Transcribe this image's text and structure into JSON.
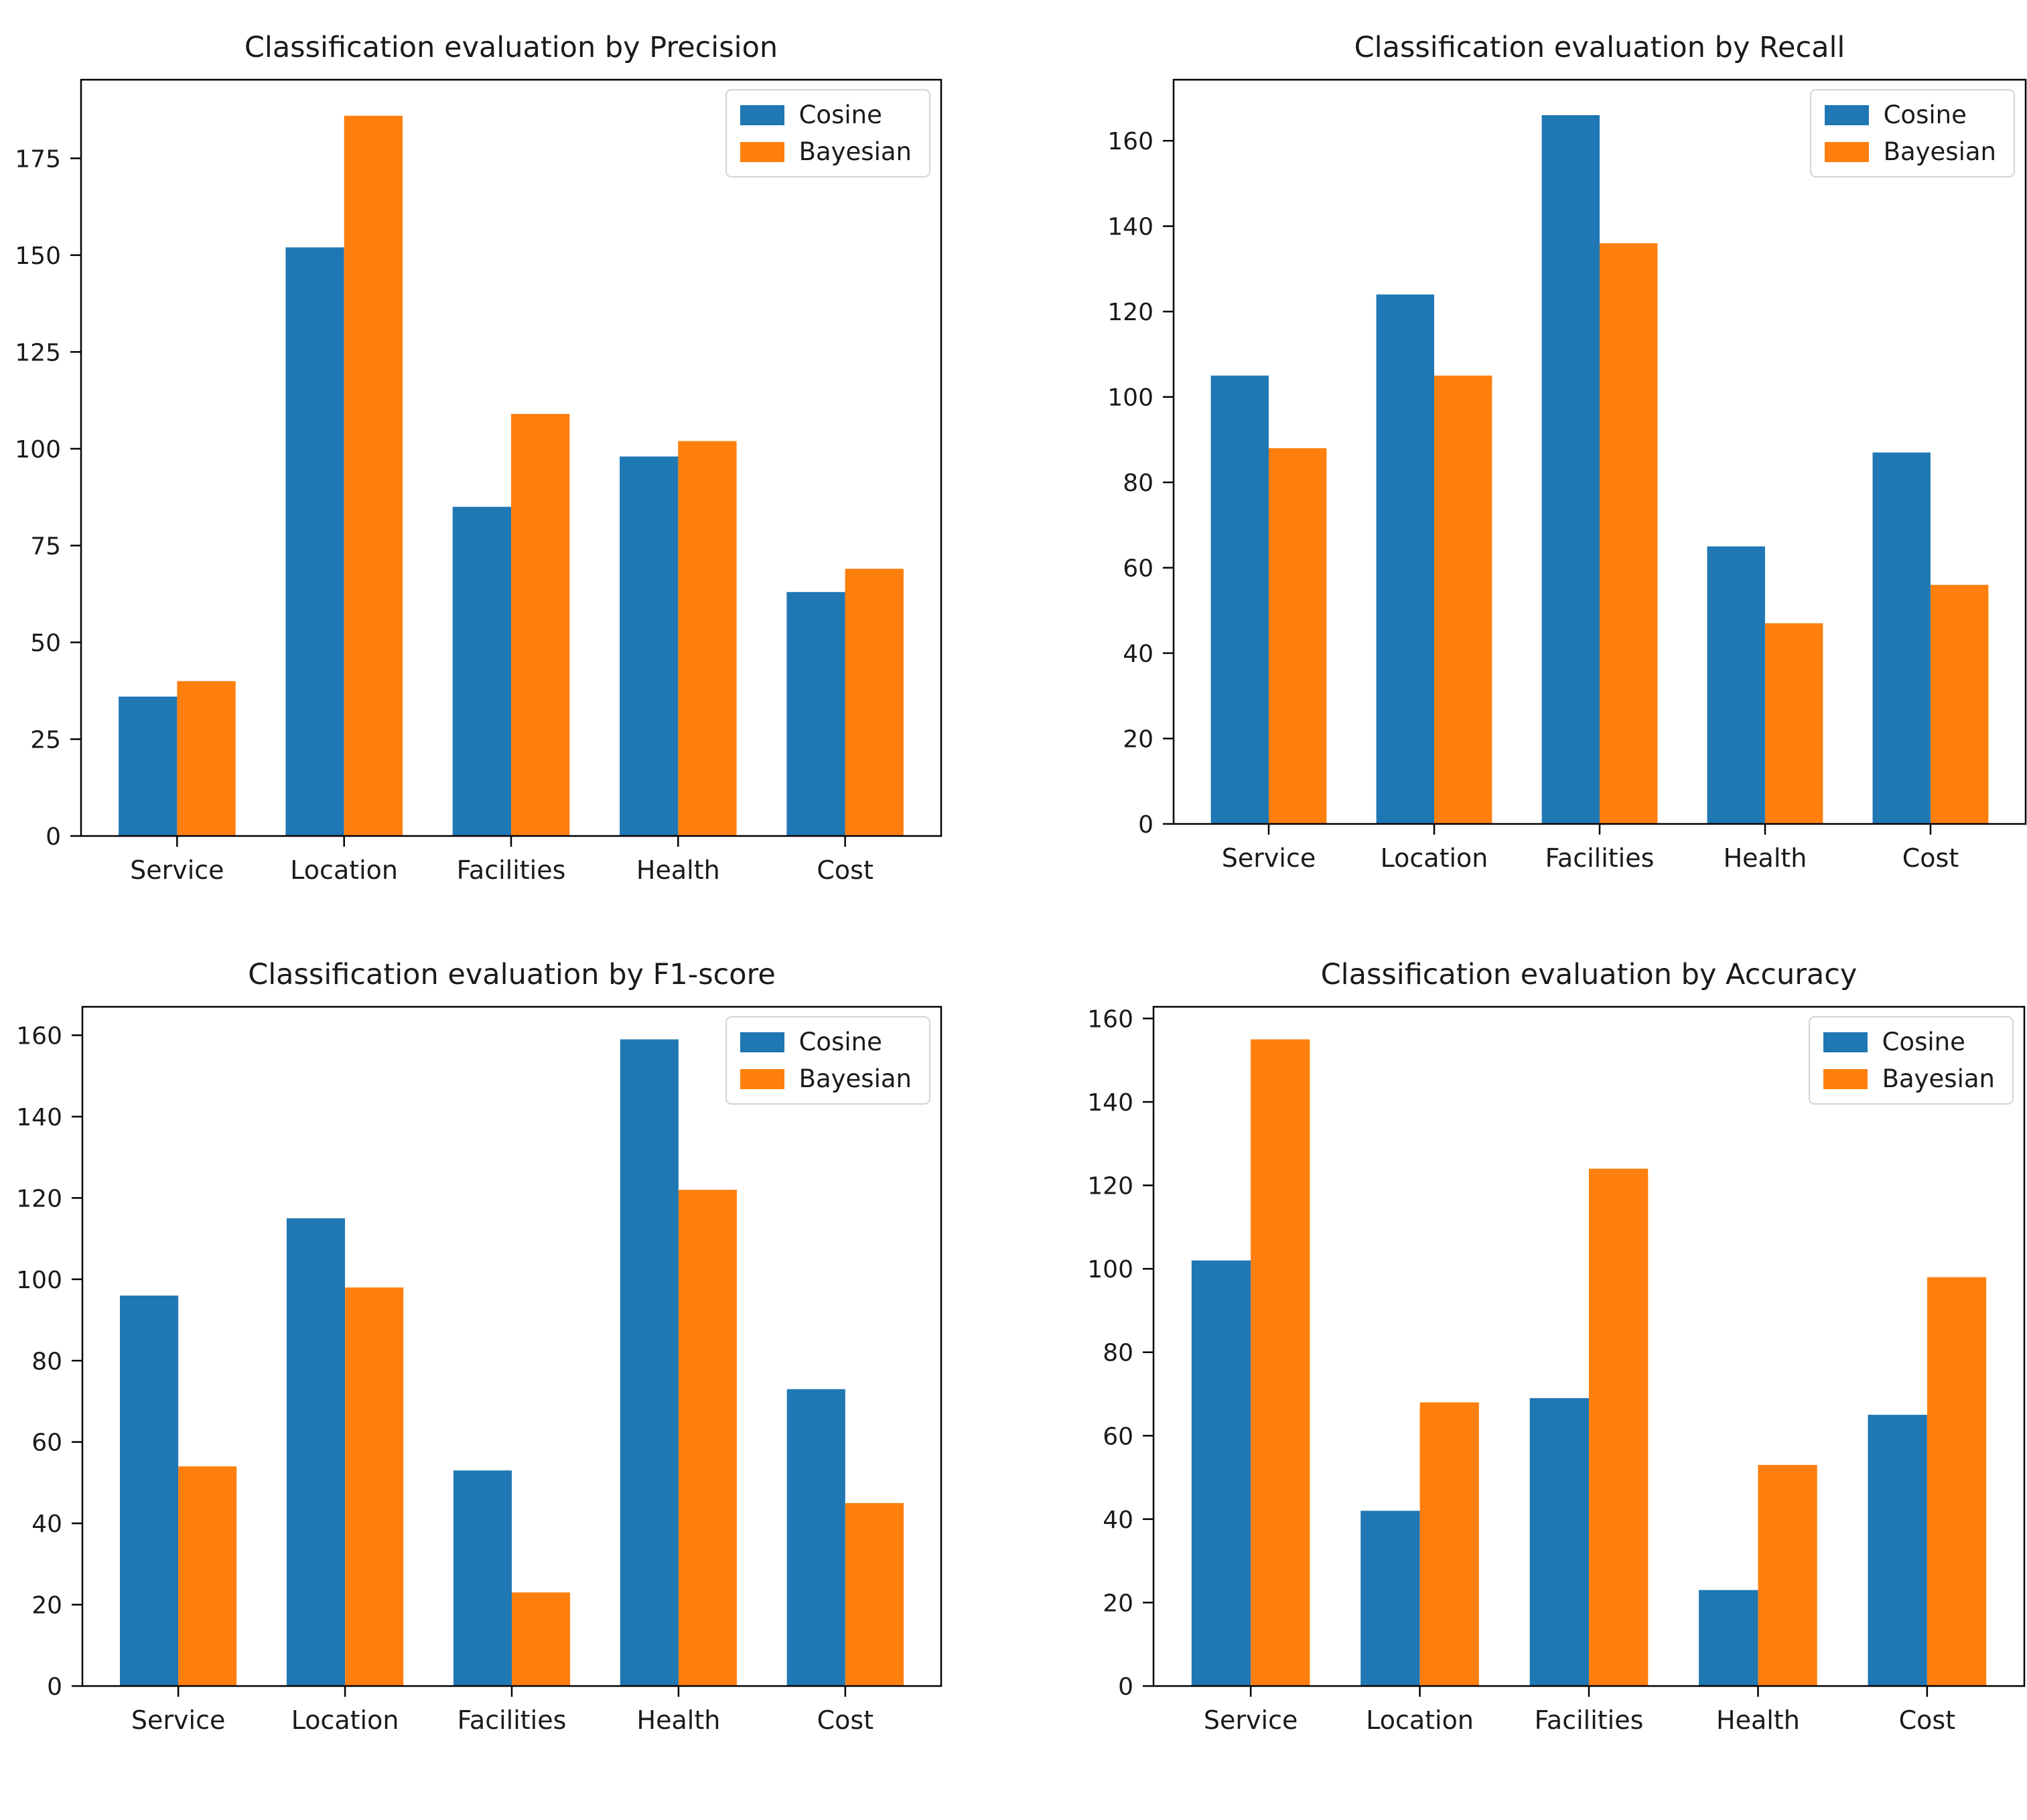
{
  "figure": {
    "background": "#ffffff"
  },
  "palette": {
    "cosine": "#1f77b4",
    "bayesian": "#ff7f0e",
    "spine": "#000000",
    "text": "#1a1a1a",
    "legend_border": "#d4d4d4"
  },
  "chart_data": [
    {
      "type": "bar",
      "title": "Classification evaluation by Precision",
      "categories": [
        "Service",
        "Location",
        "Facilities",
        "Health",
        "Cost"
      ],
      "series": [
        {
          "name": "Cosine",
          "color": "#1f77b4",
          "values": [
            36,
            152,
            85,
            98,
            63
          ]
        },
        {
          "name": "Bayesian",
          "color": "#ff7f0e",
          "values": [
            40,
            186,
            109,
            102,
            69
          ]
        }
      ],
      "xlabel": "",
      "ylabel": "",
      "ylim": [
        0,
        195.3
      ],
      "yticks": [
        0,
        25,
        50,
        75,
        100,
        125,
        150,
        175
      ],
      "grid": false,
      "legend_position": "top-right"
    },
    {
      "type": "bar",
      "title": "Classification evaluation by Recall",
      "categories": [
        "Service",
        "Location",
        "Facilities",
        "Health",
        "Cost"
      ],
      "series": [
        {
          "name": "Cosine",
          "color": "#1f77b4",
          "values": [
            105,
            124,
            166,
            65,
            87
          ]
        },
        {
          "name": "Bayesian",
          "color": "#ff7f0e",
          "values": [
            88,
            105,
            136,
            47,
            56
          ]
        }
      ],
      "xlabel": "",
      "ylabel": "",
      "ylim": [
        0,
        174.3
      ],
      "yticks": [
        0,
        20,
        40,
        60,
        80,
        100,
        120,
        140,
        160
      ],
      "grid": false,
      "legend_position": "top-right"
    },
    {
      "type": "bar",
      "title": "Classification evaluation by F1-score",
      "categories": [
        "Service",
        "Location",
        "Facilities",
        "Health",
        "Cost"
      ],
      "series": [
        {
          "name": "Cosine",
          "color": "#1f77b4",
          "values": [
            96,
            115,
            53,
            159,
            73
          ]
        },
        {
          "name": "Bayesian",
          "color": "#ff7f0e",
          "values": [
            54,
            98,
            23,
            122,
            45
          ]
        }
      ],
      "xlabel": "",
      "ylabel": "",
      "ylim": [
        0,
        167.0
      ],
      "yticks": [
        0,
        20,
        40,
        60,
        80,
        100,
        120,
        140,
        160
      ],
      "grid": false,
      "legend_position": "top-right"
    },
    {
      "type": "bar",
      "title": "Classification evaluation by Accuracy",
      "categories": [
        "Service",
        "Location",
        "Facilities",
        "Health",
        "Cost"
      ],
      "series": [
        {
          "name": "Cosine",
          "color": "#1f77b4",
          "values": [
            102,
            42,
            69,
            23,
            65
          ]
        },
        {
          "name": "Bayesian",
          "color": "#ff7f0e",
          "values": [
            155,
            68,
            124,
            53,
            98
          ]
        }
      ],
      "xlabel": "",
      "ylabel": "",
      "ylim": [
        0,
        162.8
      ],
      "yticks": [
        0,
        20,
        40,
        60,
        80,
        100,
        120,
        140,
        160
      ],
      "grid": false,
      "legend_position": "top-right"
    }
  ]
}
